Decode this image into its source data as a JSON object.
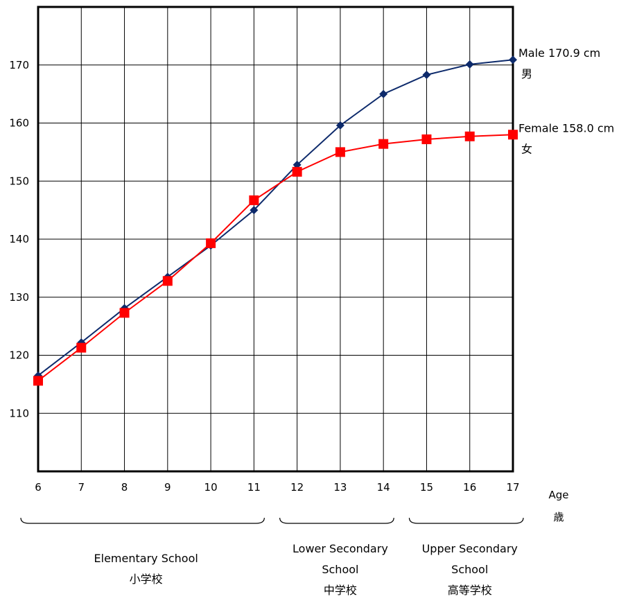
{
  "chart_data": {
    "type": "line",
    "x": [
      6,
      7,
      8,
      9,
      10,
      11,
      12,
      13,
      14,
      15,
      16,
      17
    ],
    "ylim": [
      100,
      180
    ],
    "yticks": [
      110,
      120,
      130,
      140,
      150,
      160,
      170
    ],
    "xlabel": "Age",
    "xlabel_jp": "歳",
    "grid": true,
    "series": [
      {
        "name": "Male 170.9 cm",
        "name_jp": "男",
        "color": "#0d2a6b",
        "marker": "diamond",
        "values": [
          116.5,
          122.2,
          128.1,
          133.5,
          138.9,
          145.0,
          152.8,
          159.6,
          165.0,
          168.3,
          170.1,
          170.9
        ]
      },
      {
        "name": "Female 158.0 cm",
        "name_jp": "女",
        "color": "#ff0000",
        "marker": "square",
        "values": [
          115.6,
          121.3,
          127.3,
          132.8,
          139.3,
          146.7,
          151.6,
          155.0,
          156.4,
          157.2,
          157.7,
          158.0
        ]
      }
    ],
    "school_groups": [
      {
        "from": 6,
        "to": 11,
        "lines": [
          "Elementary School",
          "小学校"
        ]
      },
      {
        "from": 12,
        "to": 14,
        "lines": [
          "Lower Secondary",
          "School",
          "中学校"
        ]
      },
      {
        "from": 15,
        "to": 17,
        "lines": [
          "Upper Secondary",
          "School",
          "高等学校"
        ]
      }
    ]
  }
}
